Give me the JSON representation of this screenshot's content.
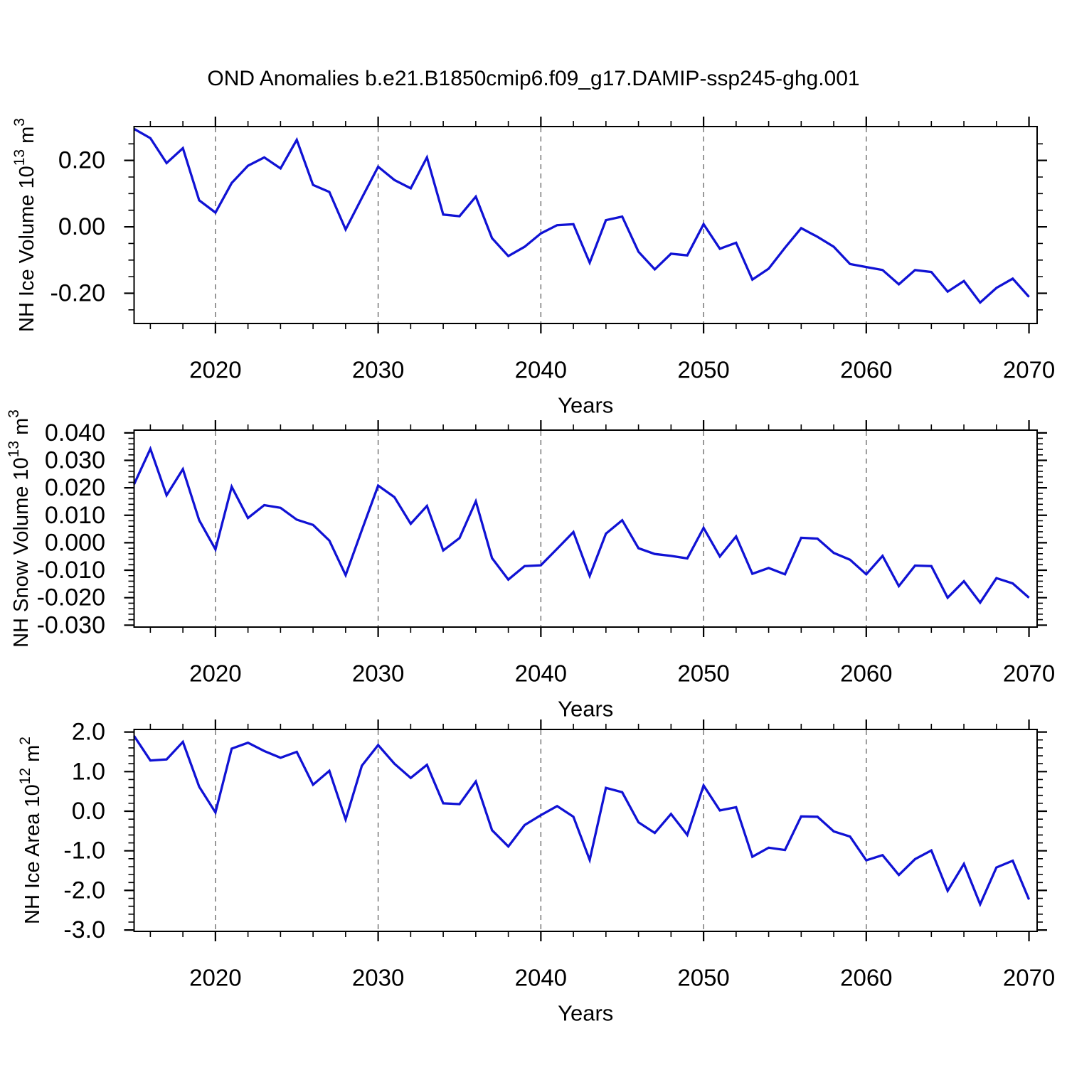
{
  "title": "OND Anomalies b.e21.B1850cmip6.f09_g17.DAMIP-ssp245-ghg.001",
  "xlabel": "Years",
  "colors": {
    "line": "#1012d4",
    "grid": "#777777",
    "frame": "#000000",
    "text": "#000000"
  },
  "years": [
    2015,
    2016,
    2017,
    2018,
    2019,
    2020,
    2021,
    2022,
    2023,
    2024,
    2025,
    2026,
    2027,
    2028,
    2029,
    2030,
    2031,
    2032,
    2033,
    2034,
    2035,
    2036,
    2037,
    2038,
    2039,
    2040,
    2041,
    2042,
    2043,
    2044,
    2045,
    2046,
    2047,
    2048,
    2049,
    2050,
    2051,
    2052,
    2053,
    2054,
    2055,
    2056,
    2057,
    2058,
    2059,
    2060,
    2061,
    2062,
    2063,
    2064,
    2065,
    2066,
    2067,
    2068,
    2069,
    2070
  ],
  "xaxis": {
    "xlim": [
      2015,
      2070.5
    ],
    "major_ticks": [
      2020,
      2030,
      2040,
      2050,
      2060,
      2070
    ],
    "labels": [
      "2020",
      "2030",
      "2040",
      "2050",
      "2060",
      "2070"
    ],
    "minor_step": 2,
    "gridlines": [
      2020,
      2030,
      2040,
      2050,
      2060
    ]
  },
  "chart_data": [
    {
      "type": "line",
      "name": "nh-ice-volume",
      "ylabel": "NH Ice Volume 10¹³ m³",
      "ylabel_segments": [
        {
          "t": "NH Ice Volume 10"
        },
        {
          "t": "13",
          "sup": true
        },
        {
          "t": " m"
        },
        {
          "t": "3",
          "sup": true
        }
      ],
      "ylim": [
        -0.291,
        0.302
      ],
      "yticks": {
        "values": [
          0.2,
          0.0,
          -0.2
        ],
        "labels": [
          "0.20",
          "0.00",
          "-0.20"
        ],
        "minor_step": 0.05
      },
      "values": [
        0.295,
        0.267,
        0.192,
        0.237,
        0.08,
        0.043,
        0.132,
        0.184,
        0.209,
        0.176,
        0.262,
        0.126,
        0.105,
        -0.008,
        0.087,
        0.181,
        0.141,
        0.116,
        0.209,
        0.037,
        0.032,
        0.091,
        -0.034,
        -0.088,
        -0.06,
        -0.02,
        0.005,
        0.008,
        -0.108,
        0.02,
        0.031,
        -0.075,
        -0.128,
        -0.081,
        -0.086,
        0.008,
        -0.066,
        -0.048,
        -0.159,
        -0.126,
        -0.063,
        -0.004,
        -0.03,
        -0.06,
        -0.112,
        -0.121,
        -0.13,
        -0.173,
        -0.13,
        -0.136,
        -0.195,
        -0.163,
        -0.228,
        -0.184,
        -0.156,
        -0.211
      ]
    },
    {
      "type": "line",
      "name": "nh-snow-volume",
      "ylabel": "NH Snow Volume 10¹³ m³",
      "ylabel_segments": [
        {
          "t": "NH Snow Volume 10"
        },
        {
          "t": "13",
          "sup": true
        },
        {
          "t": " m"
        },
        {
          "t": "3",
          "sup": true
        }
      ],
      "ylim": [
        -0.0307,
        0.041
      ],
      "yticks": {
        "values": [
          0.04,
          0.03,
          0.02,
          0.01,
          0.0,
          -0.01,
          -0.02,
          -0.03
        ],
        "labels": [
          "0.040",
          "0.030",
          "0.020",
          "0.010",
          "0.000",
          "-0.010",
          "-0.020",
          "-0.030"
        ],
        "minor_step": 0.002
      },
      "values": [
        0.0213,
        0.0342,
        0.0173,
        0.0268,
        0.0082,
        -0.0024,
        0.0204,
        0.009,
        0.0137,
        0.0127,
        0.0084,
        0.0065,
        0.0008,
        -0.0118,
        0.0046,
        0.0208,
        0.0166,
        0.0069,
        0.0134,
        -0.0028,
        0.0017,
        0.0151,
        -0.0056,
        -0.0134,
        -0.0085,
        -0.0082,
        -0.0022,
        0.0039,
        -0.0121,
        0.0033,
        0.0082,
        -0.002,
        -0.0041,
        -0.0048,
        -0.0057,
        0.0054,
        -0.005,
        0.0023,
        -0.0113,
        -0.0092,
        -0.0115,
        0.0018,
        0.0015,
        -0.0037,
        -0.0062,
        -0.0115,
        -0.0048,
        -0.0158,
        -0.0083,
        -0.0085,
        -0.02,
        -0.014,
        -0.0218,
        -0.0129,
        -0.0148,
        -0.02
      ]
    },
    {
      "type": "line",
      "name": "nh-ice-area",
      "ylabel": "NH Ice Area 10¹² m²",
      "ylabel_segments": [
        {
          "t": "NH Ice Area 10"
        },
        {
          "t": "12",
          "sup": true
        },
        {
          "t": " m"
        },
        {
          "t": "2",
          "sup": true
        }
      ],
      "ylim": [
        -3.034,
        2.065
      ],
      "yticks": {
        "values": [
          2.0,
          1.0,
          0.0,
          -1.0,
          -2.0,
          -3.0
        ],
        "labels": [
          "2.0",
          "1.0",
          "0.0",
          "-1.0",
          "-2.0",
          "-3.0"
        ],
        "minor_step": 0.2
      },
      "values": [
        1.9,
        1.28,
        1.31,
        1.75,
        0.62,
        -0.03,
        1.58,
        1.73,
        1.52,
        1.35,
        1.5,
        0.67,
        1.02,
        -0.21,
        1.15,
        1.67,
        1.2,
        0.84,
        1.17,
        0.2,
        0.18,
        0.75,
        -0.48,
        -0.89,
        -0.35,
        -0.1,
        0.13,
        -0.14,
        -1.23,
        0.59,
        0.48,
        -0.28,
        -0.55,
        -0.07,
        -0.6,
        0.65,
        0.02,
        0.1,
        -1.15,
        -0.92,
        -0.98,
        -0.13,
        -0.14,
        -0.51,
        -0.64,
        -1.24,
        -1.11,
        -1.61,
        -1.21,
        -0.99,
        -2.01,
        -1.33,
        -2.35,
        -1.42,
        -1.25,
        -2.23
      ]
    }
  ]
}
